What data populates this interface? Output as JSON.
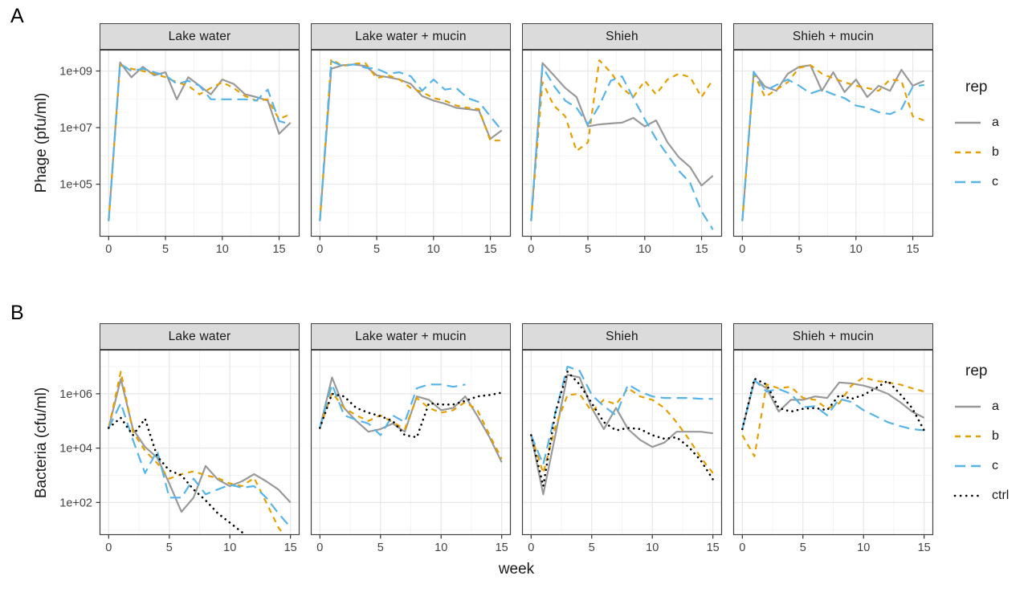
{
  "figure": {
    "background": "#ffffff",
    "strip_fill": "#dbdbdb",
    "panel_border": "#404040",
    "grid_major_color": "#e7e7e7",
    "grid_minor_color": "#f3f3f3",
    "tick_text_color": "#444444"
  },
  "chart_data": [
    {
      "id": "A",
      "type": "line",
      "panel_label": "A",
      "ylabel": "Phage (pfu/ml)",
      "xlabel": "week",
      "facets": [
        "Lake water",
        "Lake water + mucin",
        "Shieh",
        "Shieh + mucin"
      ],
      "x": [
        0,
        1,
        2,
        3,
        4,
        5,
        6,
        7,
        8,
        9,
        10,
        11,
        12,
        13,
        14,
        15,
        16
      ],
      "x_ticks": [
        0,
        5,
        10,
        15
      ],
      "x_domain": [
        -0.8,
        16.8
      ],
      "y_log10_domain": [
        3.15,
        9.75
      ],
      "y_ticks": [
        {
          "label": "1e+05",
          "log10": 5
        },
        {
          "label": "1e+07",
          "log10": 7
        },
        {
          "label": "1e+09",
          "log10": 9
        }
      ],
      "grid": true,
      "legend": {
        "title": "rep",
        "position": "right",
        "items": [
          {
            "label": "a",
            "color": "#999999",
            "linetype": "solid"
          },
          {
            "label": "b",
            "color": "#E69F00",
            "linetype": "dashed"
          },
          {
            "label": "c",
            "color": "#56B4E9",
            "linetype": "longdash"
          }
        ]
      },
      "series": [
        {
          "facet": "Lake water",
          "rep": "a",
          "values": [
            5000.0,
            2000000000.0,
            600000000.0,
            1400000000.0,
            700000000.0,
            900000000.0,
            100000000.0,
            600000000.0,
            300000000.0,
            150000000.0,
            500000000.0,
            350000000.0,
            150000000.0,
            120000000.0,
            90000000.0,
            6000000.0,
            15000000.0
          ]
        },
        {
          "facet": "Lake water",
          "rep": "b",
          "values": [
            5000.0,
            1600000000.0,
            1200000000.0,
            1000000000.0,
            800000000.0,
            600000000.0,
            400000000.0,
            300000000.0,
            150000000.0,
            250000000.0,
            400000000.0,
            250000000.0,
            130000000.0,
            90000000.0,
            100000000.0,
            20000000.0,
            30000000.0
          ]
        },
        {
          "facet": "Lake water",
          "rep": "c",
          "values": [
            5000.0,
            1800000000.0,
            1000000000.0,
            1200000000.0,
            900000000.0,
            700000000.0,
            350000000.0,
            450000000.0,
            300000000.0,
            100000000.0,
            100000000.0,
            100000000.0,
            100000000.0,
            90000000.0,
            220000000.0,
            17000000.0,
            13000000.0
          ]
        },
        {
          "facet": "Lake water + mucin",
          "rep": "a",
          "values": [
            5000.0,
            1200000000.0,
            1600000000.0,
            1700000000.0,
            1500000000.0,
            700000000.0,
            600000000.0,
            500000000.0,
            350000000.0,
            130000000.0,
            90000000.0,
            70000000.0,
            50000000.0,
            45000000.0,
            40000000.0,
            4000000.0,
            8000000.0
          ]
        },
        {
          "facet": "Lake water + mucin",
          "rep": "b",
          "values": [
            5000.0,
            2600000000.0,
            1500000000.0,
            1800000000.0,
            1900000000.0,
            550000000.0,
            700000000.0,
            500000000.0,
            250000000.0,
            180000000.0,
            110000000.0,
            90000000.0,
            60000000.0,
            50000000.0,
            45000000.0,
            3500000.0,
            3500000.0
          ]
        },
        {
          "facet": "Lake water + mucin",
          "rep": "c",
          "values": [
            5000.0,
            2200000000.0,
            1500000000.0,
            1700000000.0,
            1300000000.0,
            1200000000.0,
            800000000.0,
            900000000.0,
            650000000.0,
            200000000.0,
            500000000.0,
            220000000.0,
            250000000.0,
            110000000.0,
            80000000.0,
            25000000.0,
            8000000.0
          ]
        },
        {
          "facet": "Shieh",
          "rep": "a",
          "values": [
            5000.0,
            1900000000.0,
            700000000.0,
            250000000.0,
            120000000.0,
            11000000.0,
            13000000.0,
            14000000.0,
            15000000.0,
            22000000.0,
            11000000.0,
            18000000.0,
            3000000.0,
            900000.0,
            400000.0,
            90000.0,
            200000.0
          ]
        },
        {
          "facet": "Shieh",
          "rep": "b",
          "values": [
            5000.0,
            400000000.0,
            60000000.0,
            25000000.0,
            1500000.0,
            3000000.0,
            2400000000.0,
            900000000.0,
            250000000.0,
            120000000.0,
            450000000.0,
            150000000.0,
            500000000.0,
            800000000.0,
            600000000.0,
            120000000.0,
            500000000.0
          ]
        },
        {
          "facet": "Shieh",
          "rep": "c",
          "values": [
            5000.0,
            1400000000.0,
            300000000.0,
            90000000.0,
            50000000.0,
            13000000.0,
            60000000.0,
            450000000.0,
            650000000.0,
            110000000.0,
            20000000.0,
            4000000.0,
            1100000.0,
            300000.0,
            110000.0,
            11000.0,
            2500.0
          ]
        },
        {
          "facet": "Shieh + mucin",
          "rep": "a",
          "values": [
            5000.0,
            900000000.0,
            280000000.0,
            200000000.0,
            800000000.0,
            1400000000.0,
            1600000000.0,
            200000000.0,
            900000000.0,
            180000000.0,
            500000000.0,
            120000000.0,
            300000000.0,
            200000000.0,
            1100000000.0,
            300000000.0,
            450000000.0
          ]
        },
        {
          "facet": "Shieh + mucin",
          "rep": "b",
          "values": [
            5000.0,
            800000000.0,
            120000000.0,
            220000000.0,
            400000000.0,
            1300000000.0,
            1600000000.0,
            800000000.0,
            550000000.0,
            400000000.0,
            300000000.0,
            250000000.0,
            200000000.0,
            500000000.0,
            450000000.0,
            25000000.0,
            18000000.0
          ]
        },
        {
          "facet": "Shieh + mucin",
          "rep": "c",
          "values": [
            5000.0,
            950000000.0,
            200000000.0,
            320000000.0,
            500000000.0,
            300000000.0,
            160000000.0,
            220000000.0,
            150000000.0,
            110000000.0,
            60000000.0,
            50000000.0,
            35000000.0,
            30000000.0,
            45000000.0,
            280000000.0,
            320000000.0
          ]
        }
      ]
    },
    {
      "id": "B",
      "type": "line",
      "panel_label": "B",
      "ylabel": "Bacteria (cfu/ml)",
      "xlabel": "week",
      "facets": [
        "Lake water",
        "Lake water + mucin",
        "Shieh",
        "Shieh + mucin"
      ],
      "x": [
        0,
        1,
        2,
        3,
        4,
        5,
        6,
        7,
        8,
        9,
        10,
        11,
        12,
        13,
        14,
        15
      ],
      "x_ticks": [
        0,
        5,
        10,
        15
      ],
      "x_domain": [
        -0.75,
        15.75
      ],
      "y_log10_domain": [
        0.8,
        7.62
      ],
      "y_ticks": [
        {
          "label": "1e+02",
          "log10": 2
        },
        {
          "label": "1e+04",
          "log10": 4
        },
        {
          "label": "1e+06",
          "log10": 6
        }
      ],
      "grid": true,
      "legend": {
        "title": "rep",
        "position": "right",
        "items": [
          {
            "label": "a",
            "color": "#999999",
            "linetype": "solid"
          },
          {
            "label": "b",
            "color": "#E69F00",
            "linetype": "dashed"
          },
          {
            "label": "c",
            "color": "#56B4E9",
            "linetype": "longdash"
          },
          {
            "label": "ctrl",
            "color": "#000000",
            "linetype": "dotted"
          }
        ]
      },
      "series": [
        {
          "facet": "Lake water",
          "rep": "a",
          "values": [
            55000.0,
            3500000.0,
            50000.0,
            11000.0,
            4500.0,
            500.0,
            45.0,
            150.0,
            2200.0,
            700.0,
            400.0,
            600.0,
            1100.0,
            600.0,
            300.0,
            100.0
          ]
        },
        {
          "facet": "Lake water",
          "rep": "b",
          "values": [
            55000.0,
            6500000.0,
            40000.0,
            8000.0,
            2800.0,
            750.0,
            1100.0,
            1400.0,
            1000.0,
            800.0,
            500.0,
            400.0,
            800.0,
            100.0,
            12.0,
            3
          ]
        },
        {
          "facet": "Lake water",
          "rep": "c",
          "values": [
            55000.0,
            450000.0,
            20000.0,
            1200.0,
            8000.0,
            150.0,
            150.0,
            750.0,
            200.0,
            300.0,
            450.0,
            350.0,
            400.0,
            150.0,
            40.0,
            12.0
          ]
        },
        {
          "facet": "Lake water",
          "rep": "ctrl",
          "values": [
            55000.0,
            130000.0,
            30000.0,
            120000.0,
            5000.0,
            1500.0,
            1000.0,
            300.0,
            120.0,
            40.0,
            18.0,
            8,
            4,
            3,
            2.5,
            2
          ]
        },
        {
          "facet": "Lake water + mucin",
          "rep": "a",
          "values": [
            55000.0,
            4000000.0,
            300000.0,
            100000.0,
            40000.0,
            50000.0,
            80000.0,
            40000.0,
            800000.0,
            600000.0,
            250000.0,
            300000.0,
            800000.0,
            150000.0,
            25000.0,
            3000.0
          ]
        },
        {
          "facet": "Lake water + mucin",
          "rep": "b",
          "values": [
            55000.0,
            1100000.0,
            300000.0,
            160000.0,
            100000.0,
            160000.0,
            90000.0,
            50000.0,
            700000.0,
            300000.0,
            200000.0,
            250000.0,
            500000.0,
            250000.0,
            30000.0,
            4000.0
          ]
        },
        {
          "facet": "Lake water + mucin",
          "rep": "c",
          "values": [
            55000.0,
            2200000.0,
            160000.0,
            110000.0,
            80000.0,
            30000.0,
            160000.0,
            90000.0,
            1600000.0,
            2200000.0,
            2200000.0,
            1800000.0,
            2200000.0,
            null,
            null,
            null
          ]
        },
        {
          "facet": "Lake water + mucin",
          "rep": "ctrl",
          "values": [
            55000.0,
            1000000.0,
            800000.0,
            300000.0,
            200000.0,
            150000.0,
            100000.0,
            30000.0,
            25000.0,
            450000.0,
            400000.0,
            400000.0,
            550000.0,
            800000.0,
            900000.0,
            1100000.0
          ]
        },
        {
          "facet": "Shieh",
          "rep": "a",
          "values": [
            30000.0,
            200.0,
            30000.0,
            5000000.0,
            4000000.0,
            300000.0,
            50000.0,
            300000.0,
            50000.0,
            20000.0,
            11000.0,
            16000.0,
            40000.0,
            40000.0,
            40000.0,
            35000.0
          ]
        },
        {
          "facet": "Shieh",
          "rep": "b",
          "values": [
            30000.0,
            1200.0,
            60000.0,
            900000.0,
            1000000.0,
            220000.0,
            600000.0,
            400000.0,
            1600000.0,
            800000.0,
            600000.0,
            300000.0,
            90000.0,
            22000.0,
            4500.0,
            1200.0
          ]
        },
        {
          "facet": "Shieh",
          "rep": "c",
          "values": [
            30000.0,
            2500.0,
            200000.0,
            10000000.0,
            7000000.0,
            900000.0,
            350000.0,
            160000.0,
            2200000.0,
            1200000.0,
            800000.0,
            700000.0,
            700000.0,
            700000.0,
            650000.0,
            650000.0
          ]
        },
        {
          "facet": "Shieh",
          "rep": "ctrl",
          "values": [
            30000.0,
            400.0,
            200000.0,
            6500000.0,
            2200000.0,
            450000.0,
            90000.0,
            45000.0,
            55000.0,
            50000.0,
            30000.0,
            22000.0,
            25000.0,
            11000.0,
            3500.0,
            700.0
          ]
        },
        {
          "facet": "Shieh + mucin",
          "rep": "a",
          "values": [
            50000.0,
            3000000.0,
            1600000.0,
            220000.0,
            600000.0,
            600000.0,
            800000.0,
            700000.0,
            2600000.0,
            2400000.0,
            2000000.0,
            1500000.0,
            1000000.0,
            500000.0,
            220000.0,
            130000.0
          ]
        },
        {
          "facet": "Shieh + mucin",
          "rep": "b",
          "values": [
            30000.0,
            5000.0,
            2200000.0,
            1600000.0,
            1800000.0,
            700000.0,
            600000.0,
            280000.0,
            450000.0,
            2000000.0,
            4000000.0,
            3000000.0,
            2600000.0,
            2200000.0,
            1600000.0,
            1200000.0
          ]
        },
        {
          "facet": "Shieh + mucin",
          "rep": "c",
          "values": [
            50000.0,
            3200000.0,
            1200000.0,
            1500000.0,
            1000000.0,
            320000.0,
            350000.0,
            160000.0,
            650000.0,
            500000.0,
            250000.0,
            150000.0,
            90000.0,
            65000.0,
            50000.0,
            45000.0
          ]
        },
        {
          "facet": "Shieh + mucin",
          "rep": "ctrl",
          "values": [
            50000.0,
            3600000.0,
            2200000.0,
            300000.0,
            220000.0,
            280000.0,
            300000.0,
            250000.0,
            900000.0,
            650000.0,
            900000.0,
            1600000.0,
            3000000.0,
            1000000.0,
            300000.0,
            45000.0
          ]
        }
      ]
    }
  ]
}
